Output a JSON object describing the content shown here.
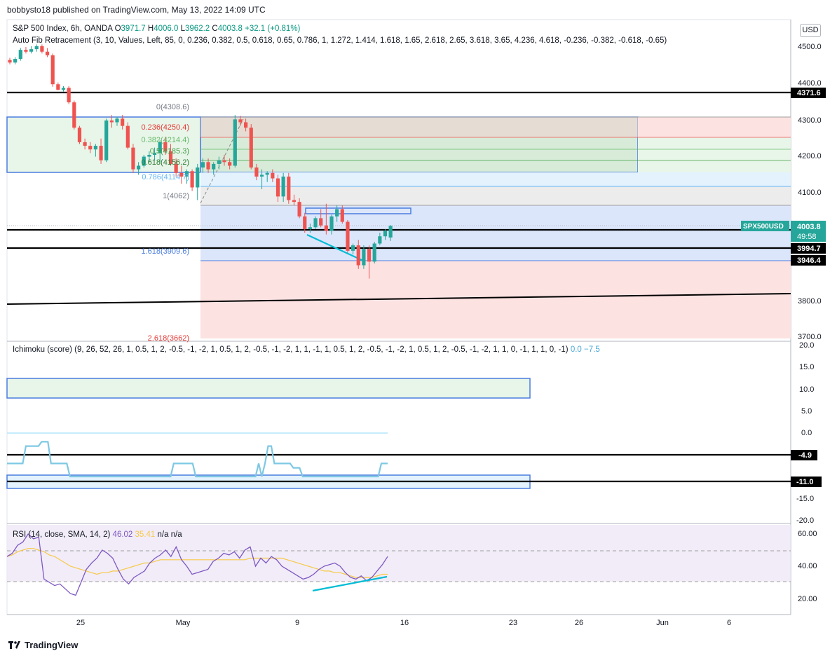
{
  "header": {
    "publisher": "bobbysto18 published on TradingView.com, May 13, 2022 14:09 UTC"
  },
  "price_legend": {
    "symbol": "S&P 500 Index, 6h, OANDA",
    "o_label": "O",
    "o": "3971.7",
    "h_label": "H",
    "h": "4006.0",
    "l_label": "L",
    "l": "3962.2",
    "c_label": "C",
    "c": "4003.8",
    "change": "+32.1 (+0.81%)"
  },
  "fib_legend": "Auto Fib Retracement (3, 10, Values, Left, 85, 0, 0.236, 0.382, 0.5, 0.618, 0.65, 0.786, 1, 1.272, 1.414, 1.618, 1.65, 2.618, 2.65, 3.618, 3.65, 4.236, 4.618, -0.236, -0.382, -0.618, -0.65)",
  "ichimoku_legend": {
    "label": "Ichimoku (score) (9, 26, 52, 26, 1, 0.5, 1, 2, -0.5, -1, -2, 1, 0.5, 1, 2, -0.5, -1, -2, 1, 1, -1, 1, 0.5, 1, 2, -0.5, -1, -2, 1, 0.5, 1, 2, -0.5, -1, -2, 1, 1, 0, -1, 1, 1, 0, -1)",
    "v1": "0.0",
    "v2": "−7.5"
  },
  "rsi_legend": {
    "label": "RSI (14, close, SMA, 14, 2)",
    "v1": "46.02",
    "v2": "35.41",
    "v3": "n/a",
    "v4": "n/a"
  },
  "currency_button": "USD",
  "footer_brand": "TradingView",
  "colors": {
    "up": "#26a69a",
    "down": "#ef5350",
    "ichimoku": "#7ec8e3",
    "rsi": "#7e57c2",
    "rsi_ma": "#f7c948",
    "fib_blue": "#4a7de0",
    "trend": "#00bcd4"
  },
  "chart_data": [
    {
      "type": "candlestick",
      "title": "S&P 500 Index, 6h, OANDA",
      "y_ticks": [
        "4500.0",
        "4400.0",
        "4300.0",
        "4200.0",
        "4100.0",
        "4000.0",
        "3900.0",
        "3800.0",
        "3700.0"
      ],
      "x_ticks": [
        "25",
        "May",
        "9",
        "16",
        "23",
        "26",
        "Jun",
        "6"
      ],
      "ylim": [
        3700,
        4540
      ],
      "candles": [
        [
          4462,
          4468,
          4450,
          4455
        ],
        [
          4455,
          4470,
          4450,
          4465
        ],
        [
          4465,
          4495,
          4460,
          4490
        ],
        [
          4490,
          4498,
          4480,
          4485
        ],
        [
          4485,
          4500,
          4480,
          4492
        ],
        [
          4492,
          4505,
          4485,
          4500
        ],
        [
          4500,
          4505,
          4480,
          4485
        ],
        [
          4485,
          4495,
          4470,
          4475
        ],
        [
          4475,
          4480,
          4388,
          4395
        ],
        [
          4395,
          4400,
          4378,
          4380
        ],
        [
          4380,
          4390,
          4375,
          4385
        ],
        [
          4385,
          4390,
          4340,
          4345
        ],
        [
          4345,
          4350,
          4270,
          4275
        ],
        [
          4275,
          4280,
          4230,
          4235
        ],
        [
          4235,
          4245,
          4215,
          4225
        ],
        [
          4225,
          4235,
          4205,
          4215
        ],
        [
          4215,
          4230,
          4195,
          4225
        ],
        [
          4225,
          4245,
          4175,
          4185
        ],
        [
          4185,
          4300,
          4180,
          4295
        ],
        [
          4295,
          4310,
          4275,
          4290
        ],
        [
          4290,
          4305,
          4280,
          4300
        ],
        [
          4300,
          4310,
          4270,
          4280
        ],
        [
          4280,
          4290,
          4215,
          4220
        ],
        [
          4220,
          4230,
          4150,
          4160
        ],
        [
          4160,
          4180,
          4145,
          4170
        ],
        [
          4170,
          4200,
          4165,
          4195
        ],
        [
          4195,
          4210,
          4180,
          4200
        ],
        [
          4200,
          4220,
          4185,
          4205
        ],
        [
          4205,
          4240,
          4180,
          4235
        ],
        [
          4235,
          4250,
          4200,
          4210
        ],
        [
          4210,
          4230,
          4170,
          4175
        ],
        [
          4175,
          4190,
          4140,
          4150
        ],
        [
          4150,
          4170,
          4120,
          4140
        ],
        [
          4140,
          4160,
          4120,
          4155
        ],
        [
          4155,
          4160,
          4100,
          4110
        ],
        [
          4110,
          4175,
          4075,
          4165
        ],
        [
          4165,
          4190,
          4150,
          4180
        ],
        [
          4180,
          4190,
          4150,
          4160
        ],
        [
          4160,
          4180,
          4145,
          4175
        ],
        [
          4175,
          4195,
          4160,
          4185
        ],
        [
          4185,
          4200,
          4170,
          4180
        ],
        [
          4180,
          4190,
          4160,
          4170
        ],
        [
          4170,
          4310,
          4165,
          4298
        ],
        [
          4298,
          4308,
          4280,
          4290
        ],
        [
          4290,
          4300,
          4265,
          4275
        ],
        [
          4275,
          4285,
          4160,
          4165
        ],
        [
          4165,
          4175,
          4130,
          4140
        ],
        [
          4140,
          4160,
          4105,
          4145
        ],
        [
          4145,
          4155,
          4125,
          4150
        ],
        [
          4150,
          4160,
          4125,
          4135
        ],
        [
          4135,
          4145,
          4070,
          4085
        ],
        [
          4085,
          4150,
          4070,
          4140
        ],
        [
          4140,
          4150,
          4065,
          4075
        ],
        [
          4075,
          4090,
          4060,
          4070
        ],
        [
          4070,
          4080,
          4025,
          4030
        ],
        [
          4030,
          4040,
          3985,
          3995
        ],
        [
          3995,
          4010,
          3985,
          4000
        ],
        [
          4000,
          4030,
          3995,
          4025
        ],
        [
          4025,
          4050,
          4000,
          4005
        ],
        [
          4005,
          4065,
          3980,
          3990
        ],
        [
          3990,
          4035,
          3980,
          4030
        ],
        [
          4030,
          4060,
          4015,
          4050
        ],
        [
          4050,
          4060,
          4010,
          4015
        ],
        [
          4015,
          4020,
          3930,
          3935
        ],
        [
          3935,
          3955,
          3925,
          3950
        ],
        [
          3950,
          3965,
          3885,
          3895
        ],
        [
          3895,
          3950,
          3885,
          3940
        ],
        [
          3940,
          3950,
          3858,
          3905
        ],
        [
          3905,
          3960,
          3900,
          3955
        ],
        [
          3955,
          3985,
          3950,
          3975
        ],
        [
          3975,
          3995,
          3965,
          3990
        ],
        [
          3971.7,
          4006.0,
          3962.2,
          4003.8
        ]
      ],
      "horizontal_levels": [
        4371.6,
        4003.8,
        3994.7,
        3946.4
      ],
      "trendline": [
        [
          3999,
          3820
        ],
        [
          3785,
          3820
        ]
      ],
      "last_price_label": "SPX500USD",
      "last_price": "4003.8",
      "countdown": "49:58",
      "level_labels": [
        "4371.6",
        "3994.7",
        "3946.4"
      ],
      "fib_levels": [
        {
          "label": "0(4308.6)",
          "price": 4308.6
        },
        {
          "label": "0.236(4250.4)",
          "price": 4250.4
        },
        {
          "label": "0.382(4214.4)",
          "price": 4214.4
        },
        {
          "label": "0.5(4185.3)",
          "price": 4185.3
        },
        {
          "label": "0.618(4156.2)",
          "price": 4156.2
        },
        {
          "label": "0.786(4114.7)",
          "price": 4114.7
        },
        {
          "label": "1(4062)",
          "price": 4062
        },
        {
          "label": "1.618(3909.6)",
          "price": 3909.6
        },
        {
          "label": "2.618(3662)",
          "price": 3662
        }
      ]
    },
    {
      "type": "line",
      "title": "Ichimoku (score)",
      "y_ticks": [
        "20.0",
        "15.0",
        "10.0",
        "5.0",
        "0.0",
        "-15.0",
        "-20.0"
      ],
      "ylim": [
        -20,
        20
      ],
      "level_labels": [
        "-4.9",
        "-11.0"
      ],
      "levels": [
        -4.9,
        -11.0
      ],
      "values": [
        -7,
        -7,
        -7,
        -7,
        -7,
        -7,
        -3,
        -3,
        -3,
        -3,
        -3,
        -2,
        -2,
        -2,
        -7,
        -7,
        -7,
        -7,
        -7,
        -7,
        -10,
        -10,
        -10,
        -10,
        -10,
        -10,
        -10,
        -10,
        -10,
        -10,
        -10,
        -10,
        -10,
        -10,
        -10,
        -10,
        -10,
        -10,
        -10,
        -10,
        -10,
        -10,
        -10,
        -10,
        -10,
        -10,
        -10,
        -10,
        -10,
        -10,
        -10,
        -10,
        -10,
        -7,
        -7,
        -7,
        -7,
        -7,
        -7,
        -7,
        -10,
        -10,
        -10,
        -10,
        -10,
        -10,
        -10,
        -10,
        -10,
        -10,
        -10,
        -10,
        -10,
        -10,
        -10,
        -10,
        -10,
        -10,
        -10,
        -10,
        -7,
        -10,
        -7,
        -3,
        -3,
        -7,
        -7,
        -7,
        -7,
        -7,
        -7,
        -8,
        -8,
        -8,
        -10,
        -10,
        -10,
        -10,
        -10,
        -10,
        -10,
        -10,
        -10,
        -10,
        -10,
        -10,
        -10,
        -10,
        -10,
        -10,
        -10,
        -10,
        -10,
        -10,
        -10,
        -10,
        -10,
        -10,
        -10,
        -7,
        -7,
        -7
      ]
    },
    {
      "type": "line",
      "title": "RSI (14, close, SMA, 14, 2)",
      "y_ticks": [
        "60.00",
        "40.00",
        "20.00"
      ],
      "ylim": [
        10,
        70
      ],
      "bands": [
        30,
        50
      ],
      "rsi_values": [
        46,
        48,
        53,
        55,
        60,
        57,
        58,
        32,
        30,
        28,
        29,
        26,
        23,
        22,
        30,
        38,
        42,
        45,
        50,
        48,
        45,
        38,
        32,
        29,
        33,
        35,
        37,
        42,
        45,
        47,
        50,
        46,
        52,
        44,
        40,
        35,
        36,
        37,
        38,
        43,
        45,
        48,
        47,
        49,
        45,
        50,
        52,
        40,
        45,
        42,
        46,
        44,
        40,
        38,
        36,
        34,
        32,
        33,
        35,
        38,
        40,
        41,
        42,
        40,
        36,
        33,
        32,
        34,
        31,
        33,
        37,
        41,
        46
      ],
      "ma_values": [
        46,
        47,
        49,
        50,
        51,
        51,
        50,
        49,
        47,
        46,
        44,
        42,
        40,
        39,
        38,
        37,
        36,
        35,
        36,
        36,
        37,
        37,
        38,
        39,
        40,
        41,
        42,
        42,
        43,
        44,
        44,
        44,
        44,
        44,
        44,
        44,
        44,
        44,
        44,
        44,
        44,
        44,
        44,
        44,
        44,
        44,
        45,
        45,
        45,
        45,
        45,
        45,
        45,
        44,
        43,
        42,
        41,
        40,
        39,
        38,
        37,
        37,
        36,
        36,
        35,
        34,
        33,
        33,
        33,
        33,
        34,
        35,
        35
      ]
    }
  ]
}
